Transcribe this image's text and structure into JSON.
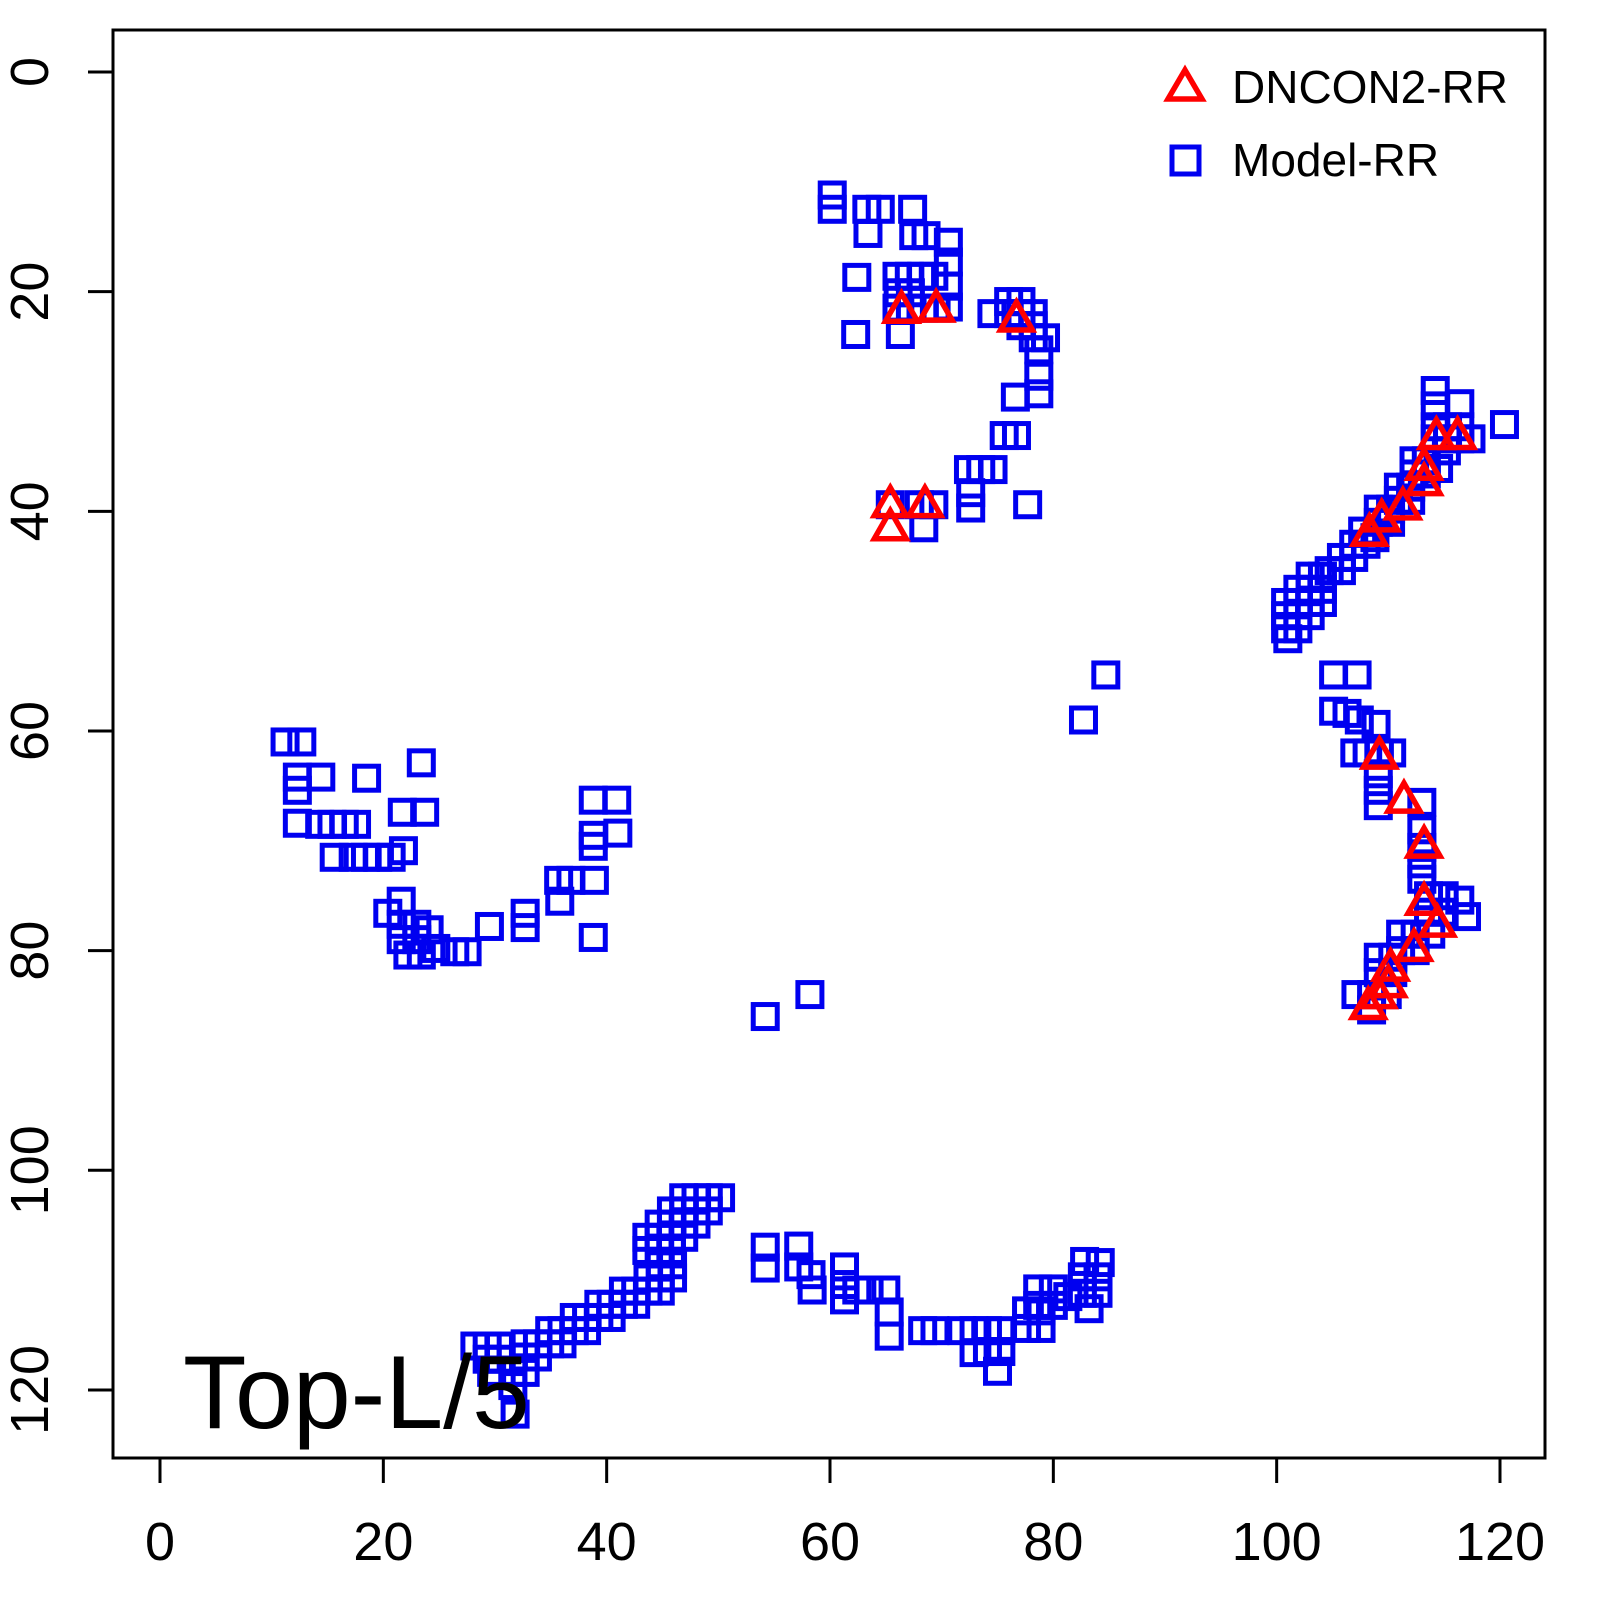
{
  "title": "Top-L/5",
  "legend": [
    {
      "label": "DNCON2-RR",
      "marker": "triangle-open",
      "color": "#ff0000"
    },
    {
      "label": "Model-RR",
      "marker": "square-open",
      "color": "#0000f0"
    }
  ],
  "axes": {
    "x_ticks": [
      0,
      20,
      40,
      60,
      80,
      100,
      120
    ],
    "y_ticks": [
      0,
      20,
      40,
      60,
      80,
      100,
      120
    ],
    "x_range": [
      -4,
      128
    ],
    "y_range": [
      -4,
      128
    ],
    "y_inverted": true
  },
  "chart_data": {
    "type": "scatter",
    "title": "Top-L/5",
    "xlabel": "",
    "ylabel": "",
    "grid": false,
    "legend_position": "top-right",
    "x_range": [
      0,
      123
    ],
    "y_range": [
      0,
      123
    ],
    "y_axis_inverted": true,
    "series": [
      {
        "name": "Model-RR",
        "marker": "square-open",
        "color": "#0000f0",
        "points": [
          [
            60.2,
            11.2
          ],
          [
            60.2,
            12.5
          ],
          [
            63.3,
            12.5
          ],
          [
            64.5,
            12.5
          ],
          [
            67.4,
            12.5
          ],
          [
            63.4,
            14.7
          ],
          [
            67.5,
            14.9
          ],
          [
            68.6,
            14.9
          ],
          [
            70.6,
            15.5
          ],
          [
            70.6,
            17.3
          ],
          [
            62.4,
            18.7
          ],
          [
            66.0,
            18.6
          ],
          [
            67.1,
            18.6
          ],
          [
            68.2,
            18.6
          ],
          [
            69.3,
            18.6
          ],
          [
            66.1,
            20.1
          ],
          [
            67.2,
            20.1
          ],
          [
            70.6,
            19.5
          ],
          [
            66.0,
            21.5
          ],
          [
            67.2,
            21.5
          ],
          [
            68.4,
            21.5
          ],
          [
            69.5,
            21.5
          ],
          [
            70.6,
            21.4
          ],
          [
            62.3,
            23.9
          ],
          [
            66.3,
            23.9
          ],
          [
            74.5,
            22.0
          ],
          [
            76.0,
            20.9
          ],
          [
            77.1,
            20.9
          ],
          [
            76.0,
            22.0
          ],
          [
            77.1,
            22.0
          ],
          [
            78.2,
            22.0
          ],
          [
            77.1,
            23.1
          ],
          [
            78.2,
            23.1
          ],
          [
            78.2,
            24.2
          ],
          [
            79.3,
            24.2
          ],
          [
            78.7,
            25.3
          ],
          [
            78.7,
            27.7
          ],
          [
            78.7,
            29.3
          ],
          [
            76.6,
            29.6
          ],
          [
            75.6,
            33.1
          ],
          [
            76.7,
            33.1
          ],
          [
            72.4,
            36.2
          ],
          [
            73.5,
            36.2
          ],
          [
            74.6,
            36.2
          ],
          [
            72.6,
            38.3
          ],
          [
            72.6,
            39.7
          ],
          [
            77.7,
            39.4
          ],
          [
            65.4,
            39.4
          ],
          [
            68.0,
            39.4
          ],
          [
            69.3,
            39.4
          ],
          [
            68.4,
            41.5
          ],
          [
            11.2,
            61.0
          ],
          [
            12.7,
            61.0
          ],
          [
            12.3,
            64.2
          ],
          [
            12.3,
            65.4
          ],
          [
            14.4,
            64.2
          ],
          [
            18.5,
            64.3
          ],
          [
            23.4,
            62.9
          ],
          [
            21.7,
            67.4
          ],
          [
            23.7,
            67.4
          ],
          [
            12.3,
            68.4
          ],
          [
            14.3,
            68.5
          ],
          [
            15.4,
            68.5
          ],
          [
            16.5,
            68.5
          ],
          [
            17.6,
            68.5
          ],
          [
            15.6,
            71.5
          ],
          [
            17.3,
            71.5
          ],
          [
            18.4,
            71.5
          ],
          [
            19.5,
            71.5
          ],
          [
            20.7,
            71.5
          ],
          [
            21.8,
            70.9
          ],
          [
            20.4,
            76.6
          ],
          [
            21.6,
            75.5
          ],
          [
            21.6,
            77.6
          ],
          [
            23.0,
            77.6
          ],
          [
            21.6,
            79.0
          ],
          [
            23.0,
            79.0
          ],
          [
            24.1,
            78.1
          ],
          [
            22.2,
            80.4
          ],
          [
            23.4,
            80.4
          ],
          [
            24.7,
            79.8
          ],
          [
            26.4,
            80.1
          ],
          [
            27.5,
            80.1
          ],
          [
            29.5,
            77.8
          ],
          [
            32.7,
            76.6
          ],
          [
            32.7,
            77.9
          ],
          [
            35.7,
            73.6
          ],
          [
            36.8,
            73.6
          ],
          [
            38.9,
            73.6
          ],
          [
            35.8,
            75.5
          ],
          [
            38.8,
            78.8
          ],
          [
            38.8,
            66.3
          ],
          [
            40.9,
            66.3
          ],
          [
            38.8,
            69.5
          ],
          [
            38.8,
            70.5
          ],
          [
            41.0,
            69.3
          ],
          [
            54.2,
            86.0
          ],
          [
            58.2,
            84.0
          ],
          [
            84.7,
            54.9
          ],
          [
            82.7,
            59.0
          ],
          [
            114.2,
            29.0
          ],
          [
            114.2,
            30.4
          ],
          [
            116.4,
            30.2
          ],
          [
            120.4,
            32.1
          ],
          [
            114.2,
            32.3
          ],
          [
            115.3,
            32.3
          ],
          [
            116.4,
            32.3
          ],
          [
            114.2,
            33.4
          ],
          [
            115.3,
            33.4
          ],
          [
            116.4,
            33.4
          ],
          [
            117.4,
            33.4
          ],
          [
            115.2,
            34.5
          ],
          [
            112.3,
            35.4
          ],
          [
            113.4,
            35.4
          ],
          [
            112.3,
            36.6
          ],
          [
            113.4,
            36.6
          ],
          [
            114.5,
            36.1
          ],
          [
            110.9,
            37.8
          ],
          [
            112.0,
            37.8
          ],
          [
            110.9,
            39.0
          ],
          [
            112.0,
            39.0
          ],
          [
            109.1,
            39.8
          ],
          [
            110.2,
            39.8
          ],
          [
            109.1,
            41.0
          ],
          [
            110.2,
            41.0
          ],
          [
            107.7,
            41.8
          ],
          [
            108.8,
            42.4
          ],
          [
            106.9,
            43.0
          ],
          [
            108.0,
            43.0
          ],
          [
            105.8,
            44.2
          ],
          [
            106.9,
            44.2
          ],
          [
            104.7,
            45.4
          ],
          [
            105.8,
            45.4
          ],
          [
            103.0,
            45.9
          ],
          [
            104.1,
            45.9
          ],
          [
            101.9,
            47.1
          ],
          [
            103.0,
            47.1
          ],
          [
            104.1,
            47.1
          ],
          [
            100.8,
            48.3
          ],
          [
            101.9,
            48.3
          ],
          [
            103.0,
            48.3
          ],
          [
            104.1,
            48.3
          ],
          [
            100.8,
            49.5
          ],
          [
            101.9,
            49.5
          ],
          [
            103.0,
            49.5
          ],
          [
            100.8,
            50.7
          ],
          [
            101.9,
            50.7
          ],
          [
            101.0,
            51.6
          ],
          [
            105.1,
            54.9
          ],
          [
            107.2,
            54.9
          ],
          [
            105.1,
            58.2
          ],
          [
            106.3,
            58.4
          ],
          [
            107.4,
            59.0
          ],
          [
            108.9,
            59.4
          ],
          [
            107.0,
            62.0
          ],
          [
            108.1,
            62.0
          ],
          [
            109.2,
            62.0
          ],
          [
            110.3,
            62.0
          ],
          [
            109.1,
            63.9
          ],
          [
            109.1,
            65.4
          ],
          [
            109.1,
            66.8
          ],
          [
            113.0,
            66.5
          ],
          [
            113.0,
            69.0
          ],
          [
            113.0,
            70.6
          ],
          [
            113.0,
            72.1
          ],
          [
            113.0,
            73.5
          ],
          [
            113.6,
            75.0
          ],
          [
            115.0,
            75.0
          ],
          [
            116.4,
            75.4
          ],
          [
            117.0,
            76.9
          ],
          [
            113.6,
            76.5
          ],
          [
            115.0,
            76.5
          ],
          [
            111.1,
            78.5
          ],
          [
            112.4,
            78.5
          ],
          [
            113.8,
            78.5
          ],
          [
            111.1,
            80.0
          ],
          [
            112.4,
            80.0
          ],
          [
            109.1,
            80.6
          ],
          [
            110.4,
            80.6
          ],
          [
            109.1,
            82.0
          ],
          [
            110.4,
            82.0
          ],
          [
            107.1,
            84.0
          ],
          [
            108.5,
            84.0
          ],
          [
            109.9,
            84.0
          ],
          [
            108.5,
            85.4
          ],
          [
            28.2,
            116.0
          ],
          [
            29.3,
            116.0
          ],
          [
            30.4,
            116.0
          ],
          [
            29.3,
            117.2
          ],
          [
            30.4,
            117.2
          ],
          [
            29.7,
            118.4
          ],
          [
            31.6,
            118.4
          ],
          [
            32.7,
            118.4
          ],
          [
            31.6,
            119.6
          ],
          [
            31.8,
            122.2
          ],
          [
            32.7,
            115.8
          ],
          [
            33.8,
            115.8
          ],
          [
            32.7,
            117.0
          ],
          [
            33.8,
            117.0
          ],
          [
            34.9,
            114.6
          ],
          [
            36.0,
            114.6
          ],
          [
            34.9,
            115.8
          ],
          [
            36.0,
            115.8
          ],
          [
            37.1,
            113.4
          ],
          [
            38.2,
            113.4
          ],
          [
            37.1,
            114.6
          ],
          [
            38.2,
            114.6
          ],
          [
            39.3,
            112.2
          ],
          [
            40.4,
            112.2
          ],
          [
            39.3,
            113.4
          ],
          [
            40.4,
            113.4
          ],
          [
            41.5,
            111.0
          ],
          [
            42.6,
            111.0
          ],
          [
            41.5,
            112.2
          ],
          [
            42.6,
            112.2
          ],
          [
            43.7,
            109.8
          ],
          [
            44.8,
            109.8
          ],
          [
            43.7,
            111.0
          ],
          [
            44.8,
            111.0
          ],
          [
            44.8,
            108.6
          ],
          [
            45.9,
            108.6
          ],
          [
            45.9,
            109.8
          ],
          [
            43.6,
            107.3
          ],
          [
            44.7,
            107.3
          ],
          [
            45.8,
            107.3
          ],
          [
            43.6,
            106.1
          ],
          [
            44.7,
            106.1
          ],
          [
            45.8,
            106.1
          ],
          [
            46.9,
            106.1
          ],
          [
            44.7,
            104.9
          ],
          [
            45.8,
            104.9
          ],
          [
            46.9,
            104.9
          ],
          [
            48.0,
            104.9
          ],
          [
            45.8,
            103.7
          ],
          [
            46.9,
            103.7
          ],
          [
            48.0,
            103.7
          ],
          [
            49.1,
            103.7
          ],
          [
            46.9,
            102.5
          ],
          [
            48.0,
            102.5
          ],
          [
            49.1,
            102.5
          ],
          [
            50.2,
            102.5
          ],
          [
            54.2,
            107.0
          ],
          [
            54.2,
            108.9
          ],
          [
            57.2,
            106.9
          ],
          [
            57.2,
            108.8
          ],
          [
            58.3,
            109.5
          ],
          [
            58.4,
            110.9
          ],
          [
            61.3,
            108.8
          ],
          [
            61.3,
            110.4
          ],
          [
            61.3,
            111.8
          ],
          [
            62.4,
            110.9
          ],
          [
            63.5,
            110.9
          ],
          [
            65.0,
            110.9
          ],
          [
            65.3,
            112.9
          ],
          [
            65.3,
            115.1
          ],
          [
            68.3,
            114.6
          ],
          [
            69.4,
            114.6
          ],
          [
            71.8,
            114.6
          ],
          [
            72.9,
            114.6
          ],
          [
            72.9,
            116.6
          ],
          [
            74.1,
            114.6
          ],
          [
            75.3,
            114.6
          ],
          [
            74.1,
            116.5
          ],
          [
            75.3,
            116.5
          ],
          [
            75.0,
            118.3
          ],
          [
            77.6,
            112.8
          ],
          [
            78.9,
            112.8
          ],
          [
            77.6,
            114.4
          ],
          [
            78.9,
            114.4
          ],
          [
            78.6,
            110.8
          ],
          [
            80.0,
            110.8
          ],
          [
            78.6,
            112.3
          ],
          [
            80.0,
            112.3
          ],
          [
            81.3,
            111.5
          ],
          [
            82.6,
            109.7
          ],
          [
            84.0,
            109.7
          ],
          [
            82.6,
            111.2
          ],
          [
            84.0,
            111.2
          ],
          [
            83.2,
            112.6
          ],
          [
            82.8,
            108.3
          ],
          [
            84.2,
            108.4
          ]
        ]
      },
      {
        "name": "DNCON2-RR",
        "marker": "triangle-open",
        "color": "#ff0000",
        "points": [
          [
            66.4,
            21.6
          ],
          [
            69.5,
            21.5
          ],
          [
            76.7,
            22.4
          ],
          [
            65.4,
            39.3
          ],
          [
            68.5,
            39.3
          ],
          [
            65.4,
            41.4
          ],
          [
            116.2,
            33.1
          ],
          [
            114.3,
            33.1
          ],
          [
            113.2,
            35.9
          ],
          [
            113.2,
            37.3
          ],
          [
            111.3,
            39.5
          ],
          [
            109.4,
            40.6
          ],
          [
            108.3,
            41.9
          ],
          [
            109.2,
            62.2
          ],
          [
            111.4,
            66.2
          ],
          [
            113.2,
            70.3
          ],
          [
            113.2,
            75.5
          ],
          [
            114.4,
            77.5
          ],
          [
            112.3,
            79.7
          ],
          [
            110.2,
            81.5
          ],
          [
            110.0,
            83.0
          ],
          [
            109.1,
            84.0
          ],
          [
            108.2,
            85.0
          ]
        ]
      }
    ]
  }
}
